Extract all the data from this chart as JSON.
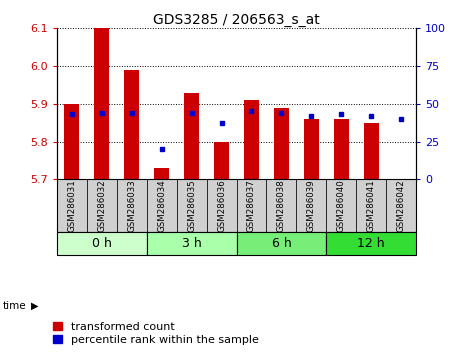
{
  "title": "GDS3285 / 206563_s_at",
  "samples": [
    "GSM286031",
    "GSM286032",
    "GSM286033",
    "GSM286034",
    "GSM286035",
    "GSM286036",
    "GSM286037",
    "GSM286038",
    "GSM286039",
    "GSM286040",
    "GSM286041",
    "GSM286042"
  ],
  "transformed_count": [
    5.9,
    6.1,
    5.99,
    5.73,
    5.93,
    5.8,
    5.91,
    5.89,
    5.86,
    5.86,
    5.85,
    5.7
  ],
  "percentile_rank": [
    43,
    44,
    44,
    20,
    44,
    37,
    45,
    44,
    42,
    43,
    42,
    40
  ],
  "ylim_left": [
    5.7,
    6.1
  ],
  "ylim_right": [
    0,
    100
  ],
  "yticks_left": [
    5.7,
    5.8,
    5.9,
    6.0,
    6.1
  ],
  "yticks_right": [
    0,
    25,
    50,
    75,
    100
  ],
  "time_groups": [
    {
      "label": "0 h",
      "start": 0,
      "end": 3,
      "color": "#ccffcc"
    },
    {
      "label": "3 h",
      "start": 3,
      "end": 6,
      "color": "#aaffaa"
    },
    {
      "label": "6 h",
      "start": 6,
      "end": 9,
      "color": "#77ee77"
    },
    {
      "label": "12 h",
      "start": 9,
      "end": 12,
      "color": "#33dd33"
    }
  ],
  "bar_color": "#cc0000",
  "dot_color": "#0000cc",
  "bar_width": 0.5,
  "baseline": 5.7,
  "grid_color": "#000000",
  "bg_color": "#ffffff",
  "tick_label_color_left": "#cc0000",
  "tick_label_color_right": "#0000cc",
  "title_fontsize": 10,
  "tick_fontsize": 8,
  "legend_fontsize": 8,
  "sample_box_color": "#d0d0d0",
  "legend_marker_size": 8
}
